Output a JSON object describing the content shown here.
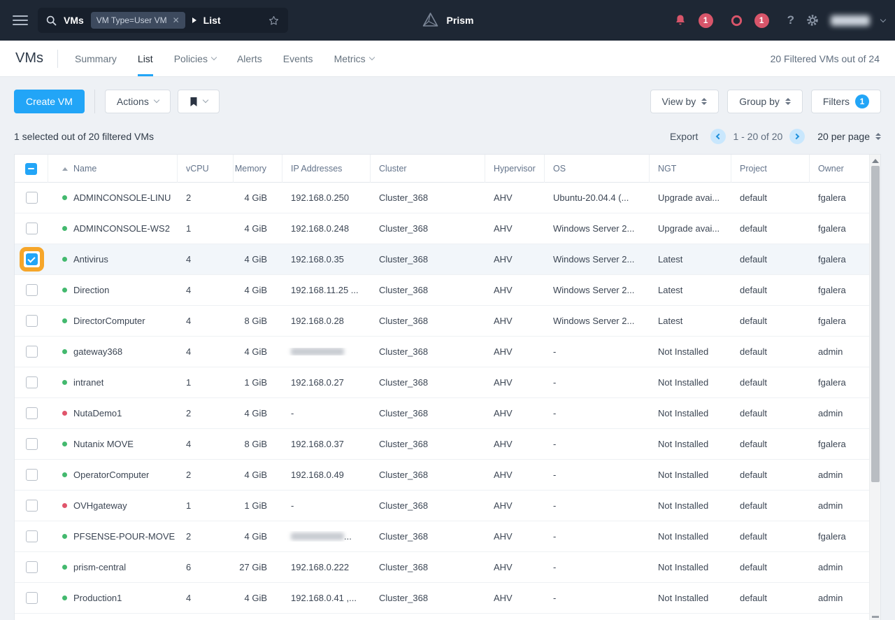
{
  "colors": {
    "accent": "#22a5f7",
    "topbar_bg": "#1e2734",
    "alert_red": "#d8556a",
    "status_green": "#43b96e",
    "status_red": "#e0556b",
    "highlight_orange": "#f6a62a",
    "selected_row_bg": "#f2f6fa"
  },
  "icons": {
    "hamburger-icon": "three bars",
    "search-icon": "magnifier",
    "breadcrumb-arrow-icon": "solid right triangle",
    "star-icon": "outline star",
    "prism-logo-icon": "triangular prism outline",
    "bell-icon": "alert bell",
    "health-ring-icon": "circle outline",
    "help-icon": "?",
    "gear-icon": "settings gear",
    "bookmark-icon": "solid bookmark",
    "sort-updown-icon": "stacked triangles",
    "checkbox-indeterminate": "minus",
    "checkbox-checked": "check"
  },
  "topbar": {
    "search_context": "VMs",
    "filter_tag": "VM Type=User VM",
    "filter_tag_close": "✕",
    "breadcrumb": "List",
    "brand": "Prism",
    "alert_badge": "1",
    "health_badge": "1",
    "help_label": "?"
  },
  "subnav": {
    "title": "VMs",
    "tabs": [
      {
        "label": "Summary",
        "active": false,
        "dropdown": false
      },
      {
        "label": "List",
        "active": true,
        "dropdown": false
      },
      {
        "label": "Policies",
        "active": false,
        "dropdown": true
      },
      {
        "label": "Alerts",
        "active": false,
        "dropdown": false
      },
      {
        "label": "Events",
        "active": false,
        "dropdown": false
      },
      {
        "label": "Metrics",
        "active": false,
        "dropdown": true
      }
    ],
    "filtered_count": "20 Filtered VMs out of 24"
  },
  "toolbar": {
    "create_vm": "Create VM",
    "actions": "Actions",
    "view_by": "View by",
    "group_by": "Group by",
    "filters": "Filters",
    "filters_count": "1"
  },
  "meta": {
    "selection_summary": "1 selected out of 20 filtered VMs",
    "export": "Export",
    "pagination_range": "1 - 20 of 20",
    "per_page": "20 per page"
  },
  "table": {
    "sort_column": "Name",
    "sort_direction": "asc",
    "columns": [
      "Name",
      "vCPU",
      "Memory",
      "IP Addresses",
      "Cluster",
      "Hypervisor",
      "OS",
      "NGT",
      "Project",
      "Owner"
    ],
    "rows": [
      {
        "name": "ADMINCONSOLE-LINU",
        "status": "green",
        "vcpu": "2",
        "memory": "4 GiB",
        "ip": "192.168.0.250",
        "cluster": "Cluster_368",
        "hypervisor": "AHV",
        "os": "Ubuntu-20.04.4 (...",
        "ngt": "Upgrade avai...",
        "project": "default",
        "owner": "fgalera",
        "selected": false,
        "ip_redacted": false
      },
      {
        "name": "ADMINCONSOLE-WS2",
        "status": "green",
        "vcpu": "1",
        "memory": "4 GiB",
        "ip": "192.168.0.248",
        "cluster": "Cluster_368",
        "hypervisor": "AHV",
        "os": "Windows Server 2...",
        "ngt": "Upgrade avai...",
        "project": "default",
        "owner": "fgalera",
        "selected": false,
        "ip_redacted": false
      },
      {
        "name": "Antivirus",
        "status": "green",
        "vcpu": "4",
        "memory": "4 GiB",
        "ip": "192.168.0.35",
        "cluster": "Cluster_368",
        "hypervisor": "AHV",
        "os": "Windows Server 2...",
        "ngt": "Latest",
        "project": "default",
        "owner": "fgalera",
        "selected": true,
        "ip_redacted": false
      },
      {
        "name": "Direction",
        "status": "green",
        "vcpu": "4",
        "memory": "4 GiB",
        "ip": "192.168.11.25 ...",
        "cluster": "Cluster_368",
        "hypervisor": "AHV",
        "os": "Windows Server 2...",
        "ngt": "Latest",
        "project": "default",
        "owner": "fgalera",
        "selected": false,
        "ip_redacted": false
      },
      {
        "name": "DirectorComputer",
        "status": "green",
        "vcpu": "4",
        "memory": "8 GiB",
        "ip": "192.168.0.28",
        "cluster": "Cluster_368",
        "hypervisor": "AHV",
        "os": "Windows Server 2...",
        "ngt": "Latest",
        "project": "default",
        "owner": "fgalera",
        "selected": false,
        "ip_redacted": false
      },
      {
        "name": "gateway368",
        "status": "green",
        "vcpu": "4",
        "memory": "4 GiB",
        "ip": "",
        "cluster": "Cluster_368",
        "hypervisor": "AHV",
        "os": "-",
        "ngt": "Not Installed",
        "project": "default",
        "owner": "admin",
        "selected": false,
        "ip_redacted": true,
        "ip_suffix": ""
      },
      {
        "name": "intranet",
        "status": "green",
        "vcpu": "1",
        "memory": "1 GiB",
        "ip": "192.168.0.27",
        "cluster": "Cluster_368",
        "hypervisor": "AHV",
        "os": "-",
        "ngt": "Not Installed",
        "project": "default",
        "owner": "fgalera",
        "selected": false,
        "ip_redacted": false
      },
      {
        "name": "NutaDemo1",
        "status": "red",
        "vcpu": "2",
        "memory": "4 GiB",
        "ip": "-",
        "cluster": "Cluster_368",
        "hypervisor": "AHV",
        "os": "-",
        "ngt": "Not Installed",
        "project": "default",
        "owner": "admin",
        "selected": false,
        "ip_redacted": false
      },
      {
        "name": "Nutanix MOVE",
        "status": "green",
        "vcpu": "4",
        "memory": "8 GiB",
        "ip": "192.168.0.37",
        "cluster": "Cluster_368",
        "hypervisor": "AHV",
        "os": "-",
        "ngt": "Not Installed",
        "project": "default",
        "owner": "fgalera",
        "selected": false,
        "ip_redacted": false
      },
      {
        "name": "OperatorComputer",
        "status": "green",
        "vcpu": "2",
        "memory": "4 GiB",
        "ip": "192.168.0.49",
        "cluster": "Cluster_368",
        "hypervisor": "AHV",
        "os": "-",
        "ngt": "Not Installed",
        "project": "default",
        "owner": "admin",
        "selected": false,
        "ip_redacted": false
      },
      {
        "name": "OVHgateway",
        "status": "red",
        "vcpu": "1",
        "memory": "1 GiB",
        "ip": "-",
        "cluster": "Cluster_368",
        "hypervisor": "AHV",
        "os": "-",
        "ngt": "Not Installed",
        "project": "default",
        "owner": "admin",
        "selected": false,
        "ip_redacted": false
      },
      {
        "name": "PFSENSE-POUR-MOVE",
        "status": "green",
        "vcpu": "2",
        "memory": "4 GiB",
        "ip": "",
        "cluster": "Cluster_368",
        "hypervisor": "AHV",
        "os": "-",
        "ngt": "Not Installed",
        "project": "default",
        "owner": "fgalera",
        "selected": false,
        "ip_redacted": true,
        "ip_suffix": "..."
      },
      {
        "name": "prism-central",
        "status": "green",
        "vcpu": "6",
        "memory": "27 GiB",
        "ip": "192.168.0.222",
        "cluster": "Cluster_368",
        "hypervisor": "AHV",
        "os": "-",
        "ngt": "Not Installed",
        "project": "default",
        "owner": "admin",
        "selected": false,
        "ip_redacted": false
      },
      {
        "name": "Production1",
        "status": "green",
        "vcpu": "4",
        "memory": "4 GiB",
        "ip": "192.168.0.41 ,...",
        "cluster": "Cluster_368",
        "hypervisor": "AHV",
        "os": "-",
        "ngt": "Not Installed",
        "project": "default",
        "owner": "admin",
        "selected": false,
        "ip_redacted": false
      }
    ]
  }
}
